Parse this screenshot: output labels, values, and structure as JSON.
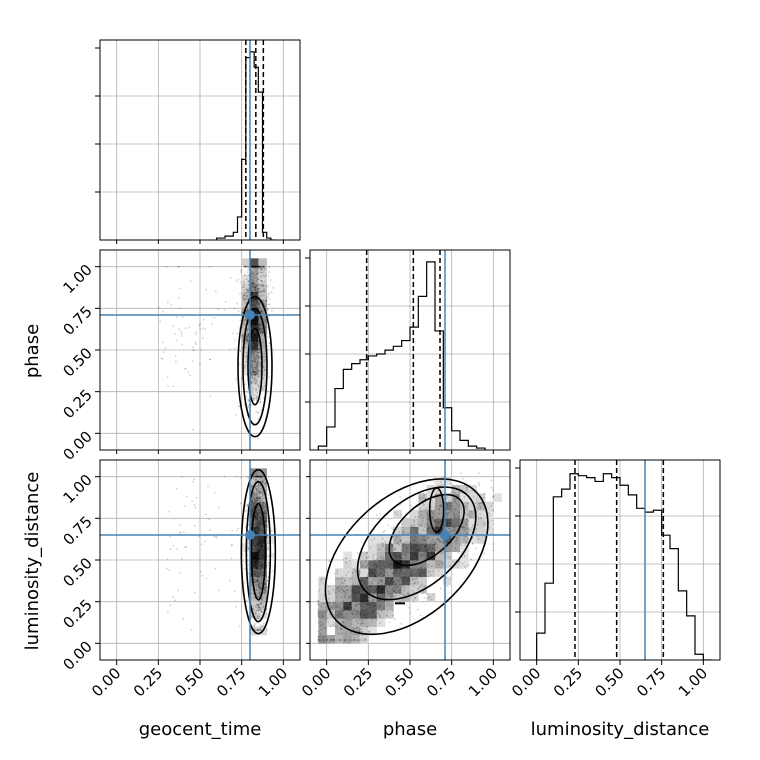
{
  "chart_data": {
    "type": "corner",
    "parameters": [
      "geocent_time",
      "phase",
      "luminosity_distance"
    ],
    "axis_labels": {
      "x": [
        "geocent_time",
        "phase",
        "luminosity_distance"
      ],
      "y": [
        "",
        "phase",
        "luminosity_distance"
      ]
    },
    "tick_values": [
      0.0,
      0.25,
      0.5,
      0.75,
      1.0
    ],
    "tick_labels": [
      "0.00",
      "0.25",
      "0.50",
      "0.75",
      "1.00"
    ],
    "axis_range": [
      -0.1,
      1.1
    ],
    "grid": true,
    "truths": [
      0.8,
      0.71,
      0.65
    ],
    "truth_color": "#4682b4",
    "quantiles": {
      "geocent_time": [
        0.775,
        0.835,
        0.88
      ],
      "phase": [
        0.24,
        0.52,
        0.68
      ],
      "luminosity_distance": [
        0.23,
        0.48,
        0.76
      ]
    },
    "histograms": {
      "geocent_time": {
        "bin_edges": [
          0.6,
          0.65,
          0.7,
          0.725,
          0.75,
          0.775,
          0.8,
          0.825,
          0.85,
          0.875,
          0.9,
          0.925,
          0.95
        ],
        "counts": [
          0.01,
          0.02,
          0.04,
          0.12,
          0.42,
          0.95,
          0.98,
          0.9,
          0.77,
          0.04,
          0.01,
          0.0
        ]
      },
      "phase": {
        "bin_edges": [
          -0.05,
          0.0,
          0.05,
          0.1,
          0.15,
          0.2,
          0.25,
          0.3,
          0.35,
          0.4,
          0.45,
          0.5,
          0.55,
          0.6,
          0.65,
          0.7,
          0.75,
          0.8,
          0.85,
          0.9,
          0.95
        ],
        "counts": [
          0.02,
          0.12,
          0.32,
          0.42,
          0.45,
          0.47,
          0.49,
          0.5,
          0.52,
          0.54,
          0.57,
          0.64,
          0.8,
          0.98,
          0.62,
          0.22,
          0.1,
          0.05,
          0.02,
          0.01
        ]
      },
      "luminosity_distance": {
        "bin_edges": [
          0.0,
          0.05,
          0.1,
          0.15,
          0.2,
          0.25,
          0.3,
          0.35,
          0.4,
          0.45,
          0.5,
          0.55,
          0.6,
          0.65,
          0.7,
          0.75,
          0.8,
          0.85,
          0.9,
          0.95,
          1.0,
          1.05
        ],
        "counts": [
          0.14,
          0.4,
          0.85,
          0.89,
          0.97,
          0.96,
          0.95,
          0.93,
          0.97,
          0.95,
          0.91,
          0.86,
          0.79,
          0.77,
          0.78,
          0.65,
          0.58,
          0.36,
          0.23,
          0.03,
          0.0
        ]
      }
    },
    "scatter_2d": {
      "phase_vs_geocent_time": {
        "x_range": [
          0.7,
          0.92
        ],
        "y_range": [
          0.0,
          1.0
        ],
        "x_peak": 0.83,
        "y_peak": 0.66
      },
      "luminosity_distance_vs_geocent_time": {
        "x_range": [
          0.74,
          0.92
        ],
        "y_range": [
          0.08,
          1.0
        ],
        "x_peak": 0.85,
        "y_peak": 0.6
      },
      "luminosity_distance_vs_phase": {
        "x_range": [
          0.0,
          0.95
        ],
        "y_range": [
          0.05,
          1.0
        ],
        "x_peak": 0.64,
        "y_peak": 0.78
      }
    }
  }
}
